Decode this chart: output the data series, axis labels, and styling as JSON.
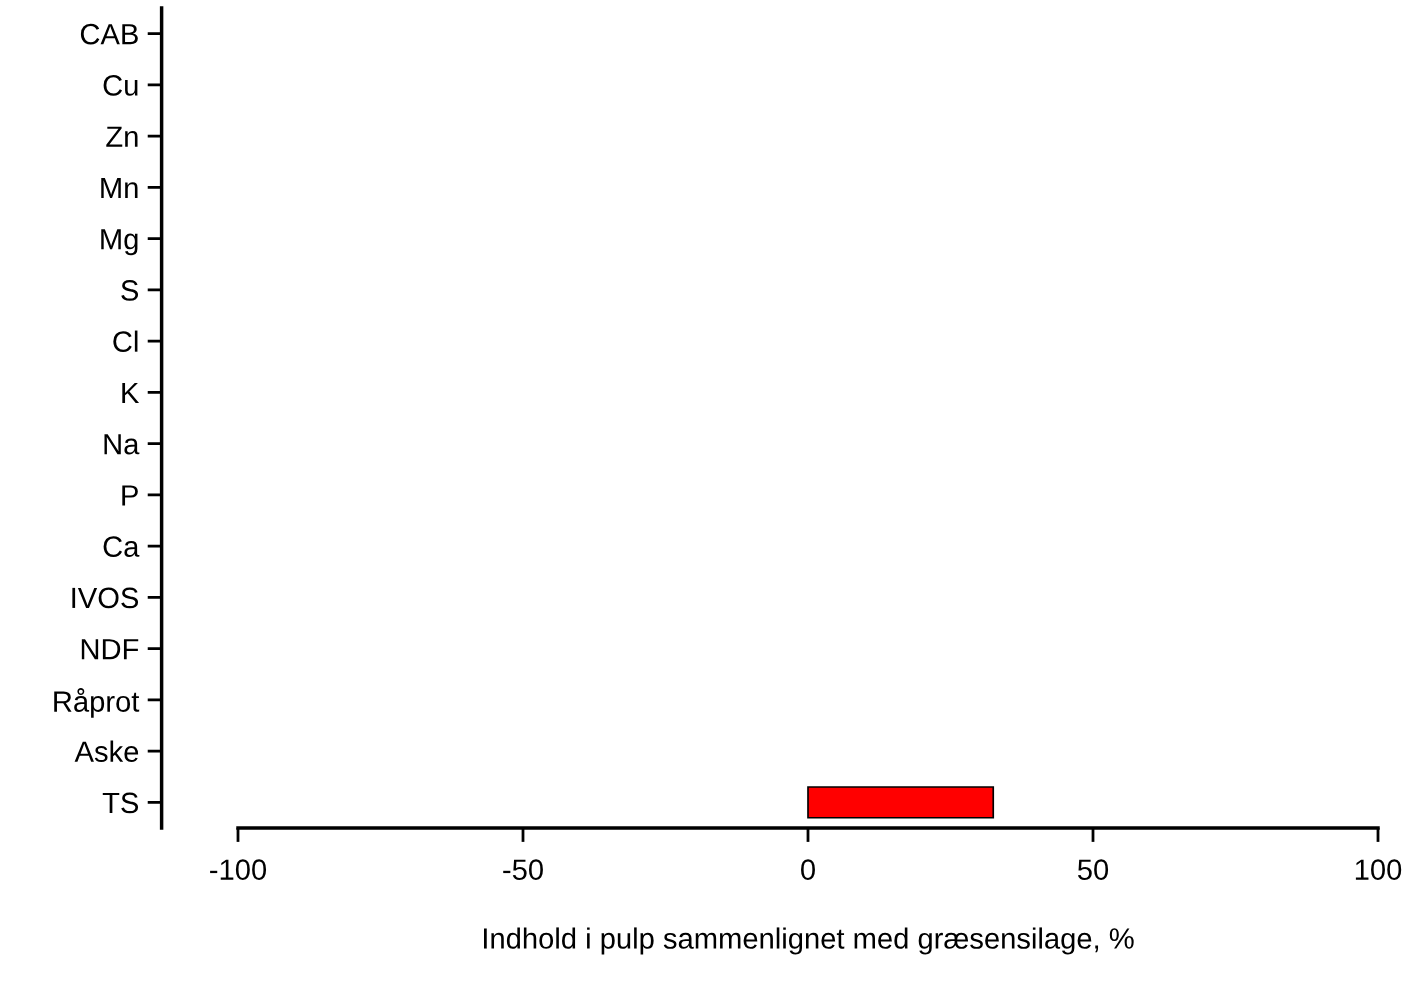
{
  "chart_data": {
    "type": "bar",
    "orientation": "horizontal",
    "xlabel": "Indhold i pulp sammenlignet med græsensilage, %",
    "categories": [
      "CAB",
      "Cu",
      "Zn",
      "Mn",
      "Mg",
      "S",
      "Cl",
      "K",
      "Na",
      "P",
      "Ca",
      "IVOS",
      "NDF",
      "Råprot",
      "Aske",
      "TS"
    ],
    "series": [
      {
        "color": "#ff0000",
        "values": [
          null,
          null,
          null,
          null,
          null,
          null,
          null,
          null,
          null,
          null,
          null,
          null,
          null,
          null,
          null,
          32.5
        ]
      }
    ],
    "xlim": [
      -100,
      100
    ],
    "xticks": [
      -100,
      -50,
      0,
      50,
      100
    ],
    "grid": false,
    "legend": false
  }
}
